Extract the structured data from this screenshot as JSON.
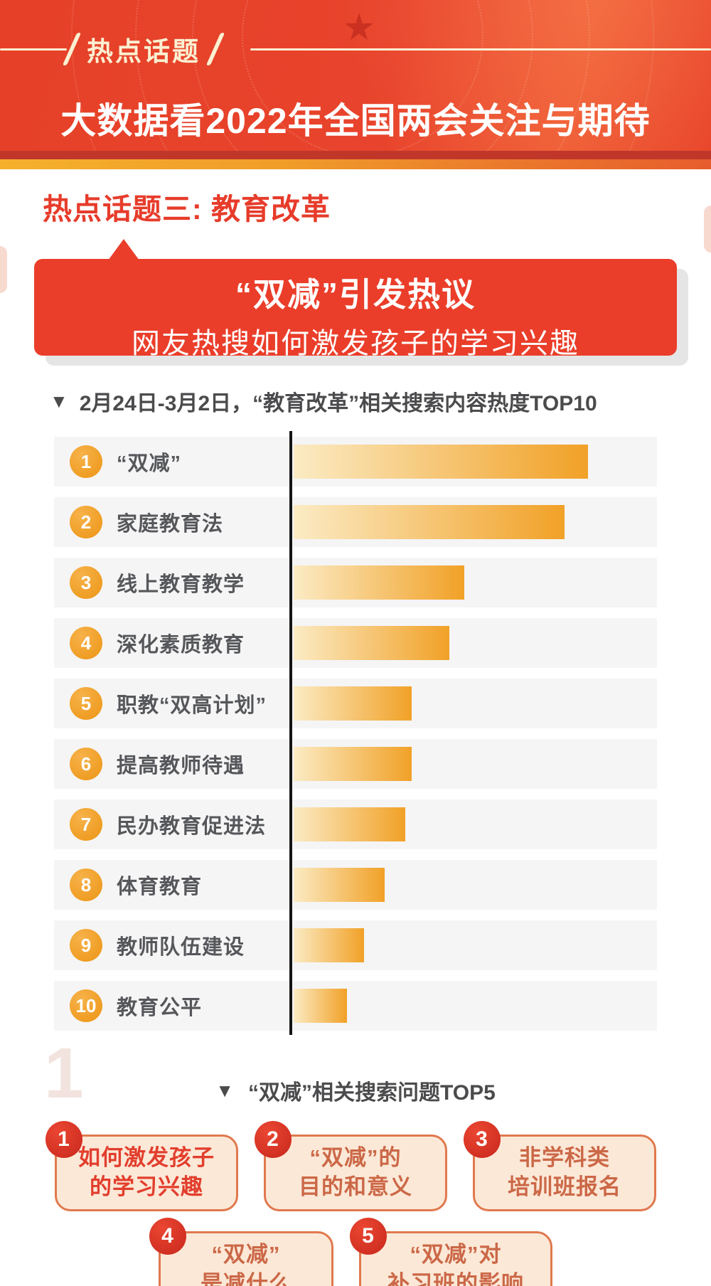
{
  "header": {
    "kicker": "热点话题",
    "title": "大数据看2022年全国两会关注与期待"
  },
  "section": {
    "title": "热点话题三: 教育改革"
  },
  "banner": {
    "line1": "“双减”引发热议",
    "line2": "网友热搜如何激发孩子的学习兴趣"
  },
  "chart_data": {
    "type": "bar",
    "orientation": "horizontal",
    "title_marker": "▼",
    "title": "2月24日-3月2日，“教育改革”相关搜索内容热度TOP10",
    "note": "bar lengths are relative search-heat values estimated as percent of the longest bar; no numeric axis labels are shown in the figure",
    "categories": [
      "“双减”",
      "家庭教育法",
      "线上教育教学",
      "深化素质教育",
      "职教“双高计划”",
      "提高教师待遇",
      "民办教育促进法",
      "体育教育",
      "教师队伍建设",
      "教育公平"
    ],
    "ranks": [
      1,
      2,
      3,
      4,
      5,
      6,
      7,
      8,
      9,
      10
    ],
    "values_percent_of_max": [
      100,
      92,
      58,
      53,
      40,
      40,
      38,
      31,
      24,
      18
    ],
    "grid": false,
    "legend": false,
    "bar_color_gradient": [
      "#fbebc4",
      "#f1a127"
    ]
  },
  "top5": {
    "title_marker": "▼",
    "title": "“双减”相关搜索问题TOP5",
    "items": [
      {
        "rank": "1",
        "line1": "如何激发孩子",
        "line2": "的学习兴趣",
        "highlight": true
      },
      {
        "rank": "2",
        "line1": "“双减”的",
        "line2": "目的和意义",
        "highlight": false
      },
      {
        "rank": "3",
        "line1": "非学科类",
        "line2": "培训班报名",
        "highlight": false
      },
      {
        "rank": "4",
        "line1": "“双减”",
        "line2": "是减什么",
        "highlight": false
      },
      {
        "rank": "5",
        "line1": "“双减”对",
        "line2": "补习班的影响",
        "highlight": false
      }
    ]
  },
  "watermark_digit": "1",
  "colors": {
    "header_red": "#e8432c",
    "strip_dark_red": "#c0372a",
    "cream": "#fbf0d2",
    "section_title_red": "#e73c2b",
    "banner_red": "#ea3e2a",
    "chart_title_gray": "#4b4b4d",
    "row_background": "#f5f5f6",
    "rank_badge_orange": "#ec9514",
    "bar_gradient_start": "#fbebc4",
    "bar_gradient_end": "#f1a127",
    "label_gray": "#56575a",
    "axis_black": "#141414",
    "question_box_bg": "#fce8d7",
    "question_box_border": "#e0794e",
    "question_text_orange": "#cb6847",
    "question_text_red": "#e23e2d",
    "question_badge_red": "#c8271c"
  }
}
